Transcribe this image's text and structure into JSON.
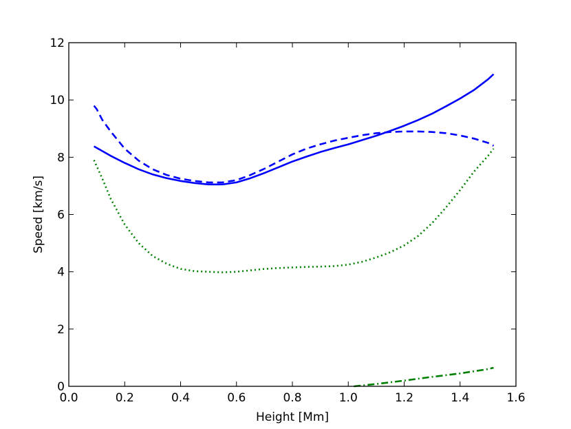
{
  "chart_data": {
    "type": "line",
    "title": "",
    "xlabel": "Height [Mm]",
    "ylabel": "Speed [km/s]",
    "xlim": [
      0.0,
      1.6
    ],
    "ylim": [
      0,
      12
    ],
    "xticks": [
      0.0,
      0.2,
      0.4,
      0.6,
      0.8,
      1.0,
      1.2,
      1.4,
      1.6
    ],
    "xtick_labels": [
      "0.0",
      "0.2",
      "0.4",
      "0.6",
      "0.8",
      "1.0",
      "1.2",
      "1.4",
      "1.6"
    ],
    "yticks": [
      0,
      2,
      4,
      6,
      8,
      10,
      12
    ],
    "ytick_labels": [
      "0",
      "2",
      "4",
      "6",
      "8",
      "10",
      "12"
    ],
    "grid": false,
    "legend": "none",
    "series": [
      {
        "color": "#0000ff",
        "style": "solid",
        "x": [
          0.09,
          0.15,
          0.2,
          0.25,
          0.3,
          0.35,
          0.4,
          0.45,
          0.5,
          0.55,
          0.6,
          0.65,
          0.7,
          0.75,
          0.8,
          0.85,
          0.9,
          0.95,
          1.0,
          1.05,
          1.1,
          1.15,
          1.2,
          1.25,
          1.3,
          1.35,
          1.4,
          1.45,
          1.5,
          1.52
        ],
        "values": [
          8.38,
          8.05,
          7.8,
          7.58,
          7.4,
          7.27,
          7.17,
          7.1,
          7.05,
          7.05,
          7.12,
          7.27,
          7.45,
          7.65,
          7.85,
          8.02,
          8.18,
          8.32,
          8.45,
          8.6,
          8.75,
          8.92,
          9.1,
          9.3,
          9.52,
          9.78,
          10.05,
          10.35,
          10.72,
          10.9
        ]
      },
      {
        "color": "#0000ff",
        "style": "dashed",
        "x": [
          0.09,
          0.1,
          0.12,
          0.15,
          0.2,
          0.25,
          0.3,
          0.35,
          0.4,
          0.45,
          0.5,
          0.55,
          0.6,
          0.65,
          0.7,
          0.75,
          0.8,
          0.85,
          0.9,
          0.95,
          1.0,
          1.05,
          1.1,
          1.15,
          1.2,
          1.25,
          1.3,
          1.35,
          1.4,
          1.45,
          1.5,
          1.52
        ],
        "values": [
          9.8,
          9.68,
          9.3,
          8.9,
          8.3,
          7.88,
          7.58,
          7.38,
          7.25,
          7.17,
          7.12,
          7.12,
          7.2,
          7.38,
          7.6,
          7.85,
          8.1,
          8.3,
          8.45,
          8.58,
          8.68,
          8.77,
          8.84,
          8.88,
          8.9,
          8.9,
          8.88,
          8.84,
          8.76,
          8.65,
          8.5,
          8.4
        ]
      },
      {
        "color": "#008000",
        "style": "dotted",
        "x": [
          0.09,
          0.12,
          0.15,
          0.2,
          0.25,
          0.3,
          0.35,
          0.4,
          0.45,
          0.5,
          0.55,
          0.6,
          0.65,
          0.7,
          0.75,
          0.8,
          0.85,
          0.9,
          0.95,
          1.0,
          1.05,
          1.1,
          1.15,
          1.2,
          1.25,
          1.3,
          1.35,
          1.4,
          1.45,
          1.5,
          1.52
        ],
        "values": [
          7.9,
          7.25,
          6.55,
          5.65,
          5.0,
          4.55,
          4.28,
          4.1,
          4.02,
          4.0,
          3.98,
          4.0,
          4.05,
          4.1,
          4.13,
          4.15,
          4.17,
          4.18,
          4.2,
          4.25,
          4.35,
          4.5,
          4.68,
          4.92,
          5.25,
          5.7,
          6.25,
          6.85,
          7.5,
          8.05,
          8.3
        ]
      },
      {
        "color": "#008000",
        "style": "dashdot",
        "x": [
          1.02,
          1.1,
          1.2,
          1.3,
          1.4,
          1.5,
          1.52
        ],
        "values": [
          0.0,
          0.08,
          0.2,
          0.33,
          0.45,
          0.6,
          0.65
        ]
      }
    ]
  }
}
